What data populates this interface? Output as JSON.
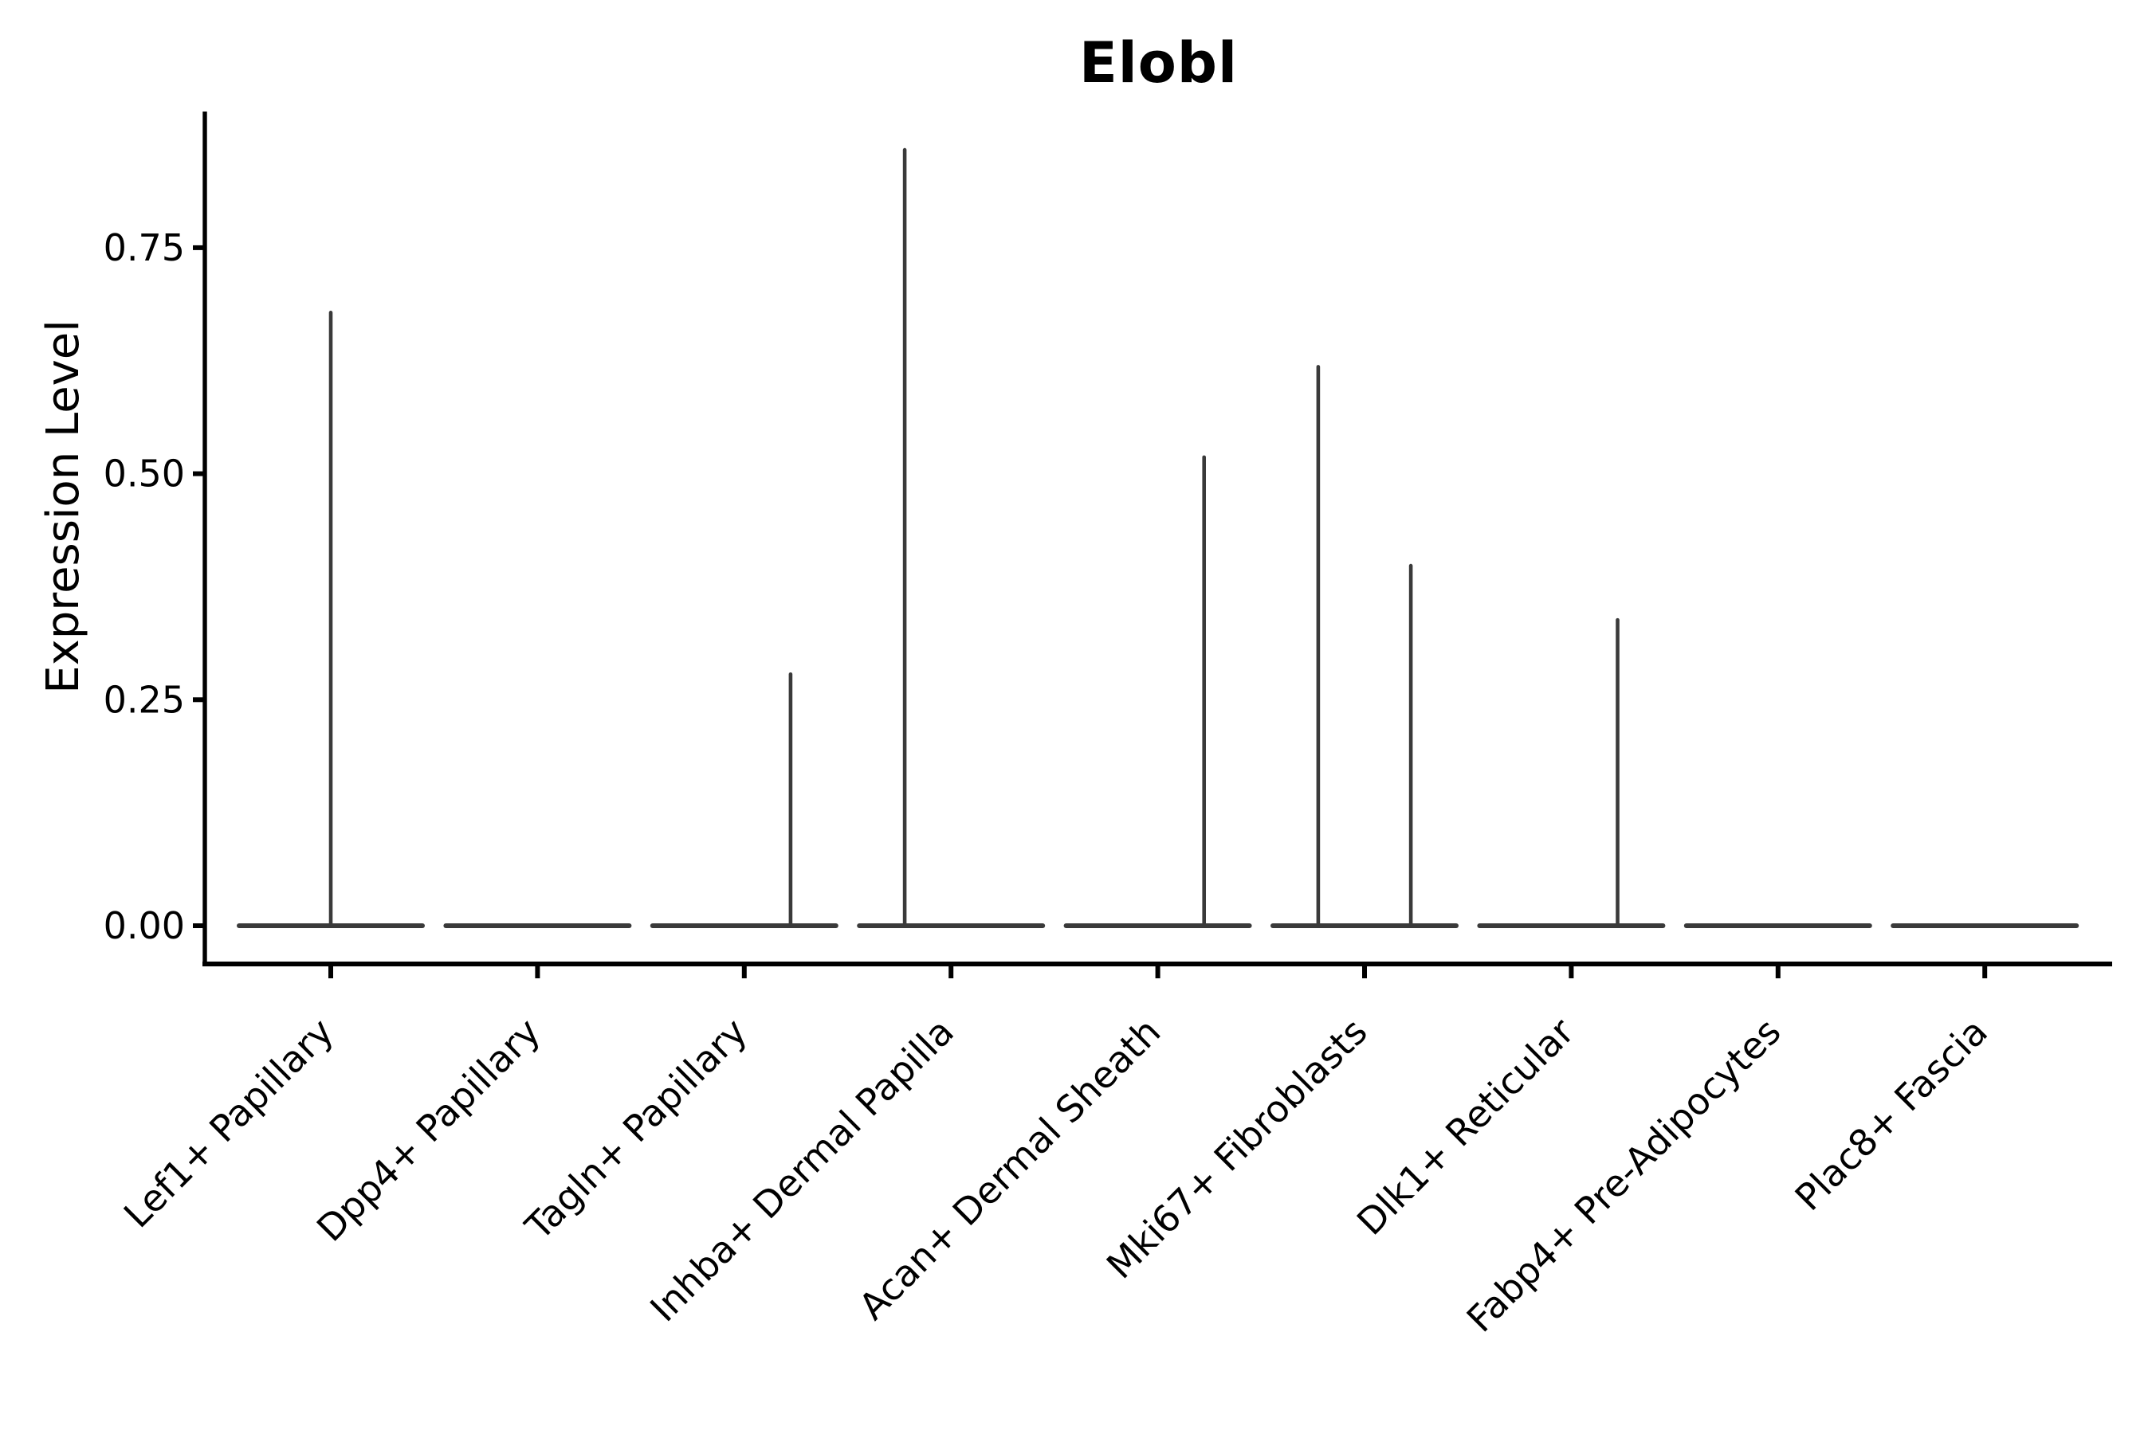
{
  "title": "Elobl",
  "axes": {
    "y_label": "Expression Level",
    "y_tick_labels": [
      "0.00",
      "0.25",
      "0.50",
      "0.75"
    ],
    "x_tick_labels": [
      "Lef1+ Papillary",
      "Dpp4+ Papillary",
      "Tagln+ Papillary",
      "Inhba+ Dermal Papilla",
      "Acan+ Dermal Sheath",
      "Mki67+ Fibroblasts",
      "Dlk1+ Reticular",
      "Fabp4+ Pre-Adipocytes",
      "Plac8+ Fascia"
    ]
  },
  "colors": {
    "violin_outline": "#3a3a3a",
    "axis": "#000000",
    "text": "#000000",
    "background": "#ffffff"
  },
  "chart_data": {
    "type": "violin",
    "title": "Elobl",
    "xlabel": "",
    "ylabel": "Expression Level",
    "ylim": [
      0,
      0.9
    ],
    "yticks": [
      0,
      0.25,
      0.5,
      0.75
    ],
    "ytick_labels": [
      "0.00",
      "0.25",
      "0.50",
      "0.75"
    ],
    "x_tick_rotation_deg": 45,
    "grid": false,
    "legend": "none",
    "baseline_value": 0,
    "violin_width_frac": 0.91,
    "categories": [
      "Lef1+ Papillary",
      "Dpp4+ Papillary",
      "Tagln+ Papillary",
      "Inhba+ Dermal Papilla",
      "Acan+ Dermal Sheath",
      "Mki67+ Fibroblasts",
      "Dlk1+ Reticular",
      "Fabp4+ Pre-Adipocytes",
      "Plac8+ Fascia"
    ],
    "violins": [
      {
        "category": "Lef1+ Papillary",
        "body": "flat-at-zero",
        "spikes": [
          {
            "position": "center",
            "offset_frac": 0,
            "max_expression": 0.68
          }
        ]
      },
      {
        "category": "Dpp4+ Papillary",
        "body": "flat-at-zero",
        "spikes": []
      },
      {
        "category": "Tagln+ Papillary",
        "body": "flat-at-zero",
        "spikes": [
          {
            "position": "right",
            "offset_frac": 0.224,
            "max_expression": 0.28
          }
        ]
      },
      {
        "category": "Inhba+ Dermal Papilla",
        "body": "flat-at-zero",
        "spikes": [
          {
            "position": "left",
            "offset_frac": -0.224,
            "max_expression": 0.86
          }
        ]
      },
      {
        "category": "Acan+ Dermal Sheath",
        "body": "flat-at-zero",
        "spikes": [
          {
            "position": "right",
            "offset_frac": 0.224,
            "max_expression": 0.52
          }
        ]
      },
      {
        "category": "Mki67+ Fibroblasts",
        "body": "flat-at-zero",
        "spikes": [
          {
            "position": "left",
            "offset_frac": -0.224,
            "max_expression": 0.62
          },
          {
            "position": "right",
            "offset_frac": 0.224,
            "max_expression": 0.4
          }
        ]
      },
      {
        "category": "Dlk1+ Reticular",
        "body": "flat-at-zero",
        "spikes": [
          {
            "position": "right",
            "offset_frac": 0.224,
            "max_expression": 0.34
          }
        ]
      },
      {
        "category": "Fabp4+ Pre-Adipocytes",
        "body": "flat-at-zero",
        "spikes": []
      },
      {
        "category": "Plac8+ Fascia",
        "body": "flat-at-zero",
        "spikes": []
      }
    ]
  }
}
